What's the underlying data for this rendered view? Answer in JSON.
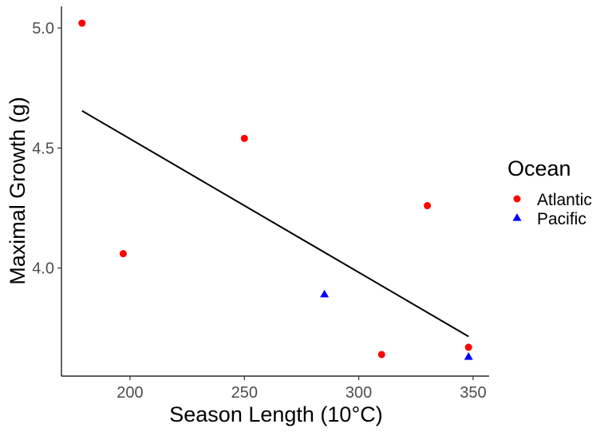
{
  "chart_data": {
    "type": "scatter",
    "title": "",
    "xlabel": "Season Length (10°C)",
    "ylabel": "Maximal Growth (g)",
    "xlim": [
      170,
      357
    ],
    "ylim": [
      3.55,
      5.09
    ],
    "x_ticks": [
      200,
      250,
      300,
      350
    ],
    "x_tick_labels": [
      "200",
      "250",
      "300",
      "350"
    ],
    "y_ticks": [
      4.0,
      4.5,
      5.0
    ],
    "y_tick_labels": [
      "4.0",
      "4.5",
      "5.0"
    ],
    "grid": false,
    "legend": {
      "title": "Ocean",
      "position": "right",
      "entries": [
        {
          "label": "Atlantic",
          "shape": "circle",
          "color": "#ff0000"
        },
        {
          "label": "Pacific",
          "shape": "triangle",
          "color": "#0000ff"
        }
      ]
    },
    "series": [
      {
        "name": "Atlantic",
        "shape": "circle",
        "color": "#ff0000",
        "points": [
          {
            "x": 179,
            "y": 5.02
          },
          {
            "x": 197,
            "y": 4.06
          },
          {
            "x": 250,
            "y": 4.54
          },
          {
            "x": 310,
            "y": 3.64
          },
          {
            "x": 330,
            "y": 4.26
          },
          {
            "x": 348,
            "y": 3.67
          }
        ]
      },
      {
        "name": "Pacific",
        "shape": "triangle",
        "color": "#0000ff",
        "points": [
          {
            "x": 285,
            "y": 3.89
          },
          {
            "x": 348,
            "y": 3.63
          }
        ]
      }
    ],
    "trend_line": {
      "name": "linear fit",
      "color": "#000000",
      "x": [
        179,
        348
      ],
      "y": [
        4.655,
        3.715
      ]
    }
  }
}
